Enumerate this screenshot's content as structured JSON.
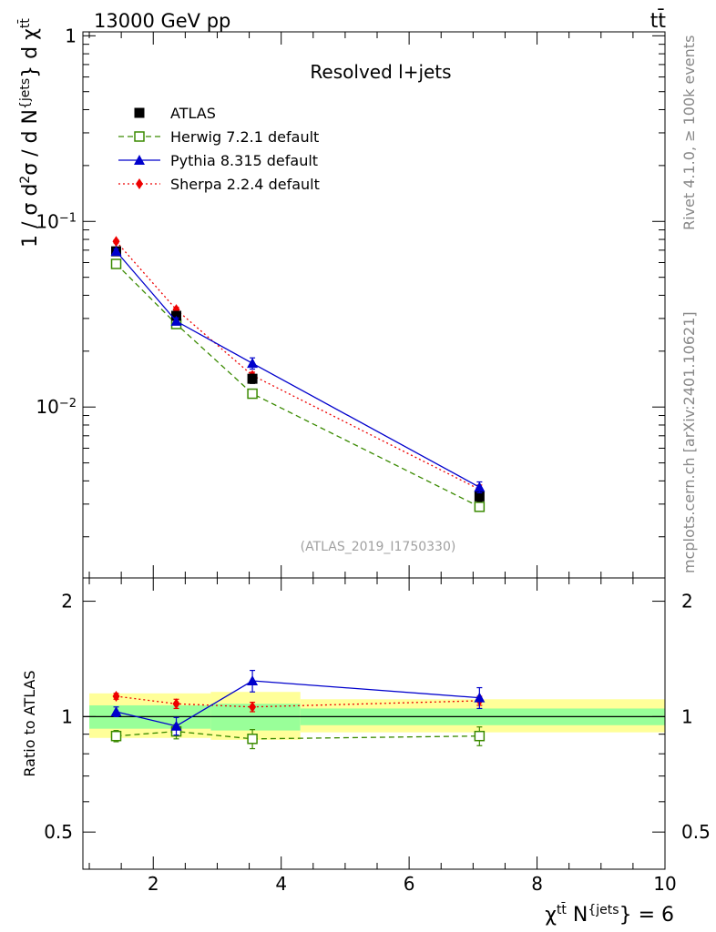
{
  "header": {
    "left": "13000 GeV pp",
    "right": "tt̄"
  },
  "side_labels": {
    "rivet": "Rivet 4.1.0, ≥ 100k events",
    "mcplots": "mcplots.cern.ch [arXiv:2401.10621]"
  },
  "colors": {
    "atlas": "#000000",
    "herwig": "#3a8a00",
    "pythia": "#0000cc",
    "sherpa": "#ee0000",
    "band_inner": "#99ff99",
    "band_outer": "#ffff99"
  },
  "chart_data": [
    {
      "type": "scatter",
      "panel": "main",
      "title": "Resolved l+jets",
      "watermark": "(ATLAS_2019_I1750330)",
      "yscale": "log",
      "ylim": [
        0.0012,
        1.05
      ],
      "xlim": [
        0.9,
        10.0
      ],
      "ylabel_parts": {
        "base": "1 / σ d",
        "sup1": "2",
        "mid": "σ / d N",
        "sup2": "{jets",
        "tail": "} d χ",
        "sup3": "tt̄"
      },
      "y_ticks": [
        {
          "value": 1,
          "label": "1",
          "sup": ""
        },
        {
          "value": 0.1,
          "label": "10",
          "sup": "−1"
        },
        {
          "value": 0.01,
          "label": "10",
          "sup": "−2"
        }
      ],
      "legend": [
        {
          "key": "atlas",
          "label": "ATLAS"
        },
        {
          "key": "herwig",
          "label": "Herwig 7.2.1 default"
        },
        {
          "key": "pythia",
          "label": "Pythia 8.315 default"
        },
        {
          "key": "sherpa",
          "label": "Sherpa 2.2.4 default"
        }
      ],
      "series": [
        {
          "key": "atlas",
          "name": "ATLAS",
          "x": [
            1.42,
            2.36,
            3.55,
            7.1
          ],
          "y": [
            0.069,
            0.031,
            0.0142,
            0.0033
          ],
          "yerr": [
            0.003,
            0.0015,
            0.0008,
            0.0002
          ]
        },
        {
          "key": "herwig",
          "name": "Herwig 7.2.1 default",
          "x": [
            1.42,
            2.36,
            3.55,
            7.1
          ],
          "y": [
            0.059,
            0.028,
            0.0118,
            0.0029
          ],
          "yerr": [
            0.0015,
            0.001,
            0.0006,
            0.00015
          ]
        },
        {
          "key": "pythia",
          "name": "Pythia 8.315 default",
          "x": [
            1.42,
            2.36,
            3.55,
            7.1
          ],
          "y": [
            0.069,
            0.029,
            0.0172,
            0.0037
          ],
          "yerr": [
            0.002,
            0.0012,
            0.0012,
            0.00025
          ]
        },
        {
          "key": "sherpa",
          "name": "Sherpa 2.2.4 default",
          "x": [
            1.42,
            2.36,
            3.55,
            7.1
          ],
          "y": [
            0.078,
            0.0335,
            0.0148,
            0.0036
          ],
          "yerr": [
            0.0015,
            0.001,
            0.0006,
            0.0002
          ]
        }
      ]
    },
    {
      "type": "scatter",
      "panel": "ratio",
      "ylabel": "Ratio to ATLAS",
      "yscale": "log",
      "ylim": [
        0.4,
        2.3
      ],
      "xlim": [
        0.9,
        10.0
      ],
      "xlabel_parts": {
        "base": "χ",
        "sup1": "tt̄",
        "mid": " N",
        "sup2": "{jets",
        "tail": "} = 6"
      },
      "x_ticks": [
        2,
        4,
        6,
        8,
        10
      ],
      "y_ticks": [
        0.5,
        1,
        2
      ],
      "bands": [
        {
          "x": [
            1.0,
            2.9
          ],
          "inner": [
            0.93,
            1.07
          ],
          "outer": [
            0.88,
            1.15
          ]
        },
        {
          "x": [
            2.9,
            4.3
          ],
          "inner": [
            0.92,
            1.08
          ],
          "outer": [
            0.87,
            1.16
          ]
        },
        {
          "x": [
            4.3,
            10.0
          ],
          "inner": [
            0.95,
            1.05
          ],
          "outer": [
            0.91,
            1.11
          ]
        }
      ],
      "series": [
        {
          "key": "herwig",
          "x": [
            1.42,
            2.36,
            3.55,
            7.1
          ],
          "y": [
            0.89,
            0.915,
            0.875,
            0.89
          ],
          "yerr": [
            0.03,
            0.04,
            0.05,
            0.05
          ]
        },
        {
          "key": "pythia",
          "x": [
            1.42,
            2.36,
            3.55,
            7.1
          ],
          "y": [
            1.03,
            0.945,
            1.24,
            1.12
          ],
          "yerr": [
            0.03,
            0.05,
            0.08,
            0.07
          ]
        },
        {
          "key": "sherpa",
          "x": [
            1.42,
            2.36,
            3.55,
            7.1
          ],
          "y": [
            1.13,
            1.08,
            1.06,
            1.1
          ],
          "yerr": [
            0.02,
            0.03,
            0.03,
            0.03
          ]
        }
      ]
    }
  ]
}
